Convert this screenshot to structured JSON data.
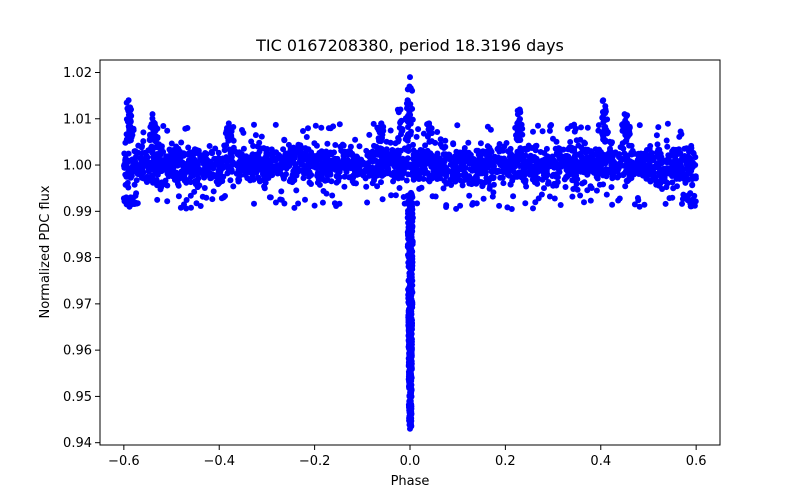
{
  "chart_data": {
    "type": "scatter",
    "title": "TIC 0167208380, period 18.3196 days",
    "xlabel": "Phase",
    "ylabel": "Normalized PDC flux",
    "xlim": [
      -0.65,
      0.65
    ],
    "ylim": [
      0.9395,
      1.0227
    ],
    "xticks": [
      -0.6,
      -0.4,
      -0.2,
      0.0,
      0.2,
      0.4,
      0.6
    ],
    "xtick_labels": [
      "−0.6",
      "−0.4",
      "−0.2",
      "0.0",
      "0.2",
      "0.4",
      "0.6"
    ],
    "yticks": [
      0.94,
      0.95,
      0.96,
      0.97,
      0.98,
      0.99,
      1.0,
      1.01,
      1.02
    ],
    "ytick_labels": [
      "0.94",
      "0.95",
      "0.96",
      "0.97",
      "0.98",
      "0.99",
      "1.00",
      "1.01",
      "1.02"
    ],
    "grid": false,
    "marker_color": "#0000ff",
    "series": [
      {
        "x": [
          -0.6,
          -0.59,
          -0.58,
          -0.5,
          -0.42,
          -0.3,
          -0.2,
          -0.1,
          -0.05,
          -0.02,
          -0.01,
          0.0,
          0.0,
          0.005,
          0.01,
          0.02,
          0.05,
          0.1,
          0.2,
          0.23,
          0.3,
          0.38,
          0.41,
          0.45,
          0.5,
          0.6
        ],
        "y": [
          1.0,
          1.012,
          0.993,
          1.005,
          0.993,
          1.0,
          0.995,
          1.004,
          0.994,
          1.008,
          0.975,
          1.019,
          0.943,
          0.96,
          0.99,
          1.01,
          0.995,
          1.003,
          1.0,
          1.012,
          0.998,
          0.995,
          1.014,
          1.011,
          0.996,
          1.0
        ]
      }
    ]
  }
}
